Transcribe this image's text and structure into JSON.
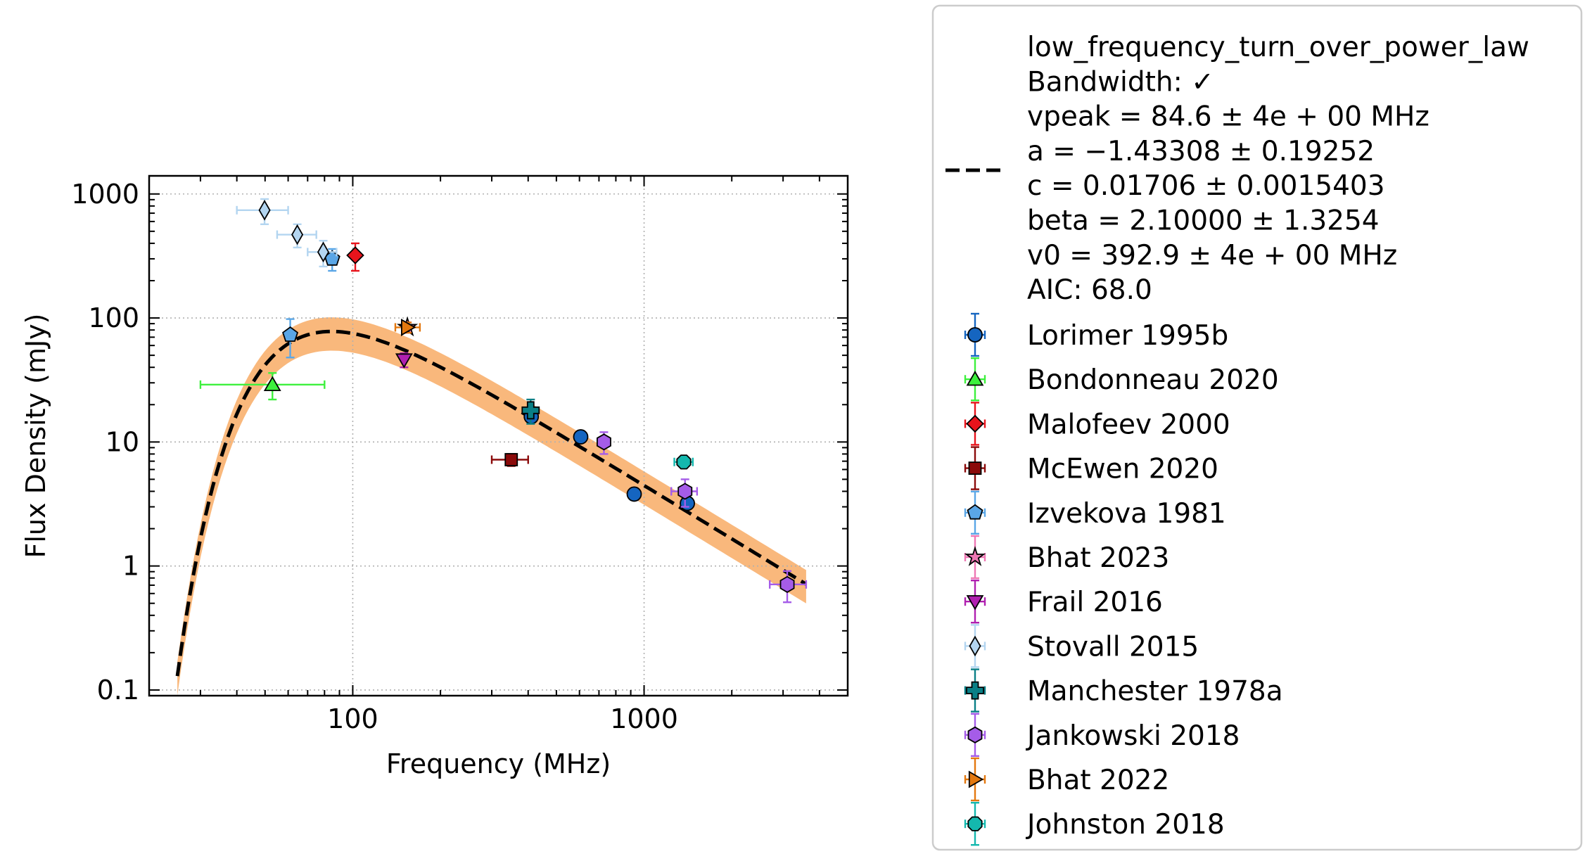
{
  "chart_data": {
    "type": "scatter",
    "xscale": "log",
    "yscale": "log",
    "xlim": [
      20,
      5000
    ],
    "ylim": [
      0.09,
      1400
    ],
    "xlabel": "Frequency (MHz)",
    "ylabel": "Flux Density (mJy)",
    "x_ticks": [
      {
        "value": 100,
        "label": "100"
      },
      {
        "value": 1000,
        "label": "1000"
      }
    ],
    "y_ticks": [
      {
        "value": 0.1,
        "label": "0.1"
      },
      {
        "value": 1,
        "label": "1"
      },
      {
        "value": 10,
        "label": "10"
      },
      {
        "value": 100,
        "label": "100"
      },
      {
        "value": 1000,
        "label": "1000"
      }
    ],
    "grid": true,
    "legend_position": "outside-right",
    "fit": {
      "model": "low_frequency_turn_over_power_law",
      "lines": [
        "low_frequency_turn_over_power_law",
        "Bandwidth: ✓",
        "vpeak = 84.6 ± 4e + 00 MHz",
        "a = −1.43308 ± 0.19252",
        "c = 0.01706 ± 0.0015403",
        "beta = 2.10000 ± 1.3254",
        "v0 = 392.9 ± 4e + 00 MHz",
        "AIC: 68.0"
      ],
      "vpeak": 84.6,
      "a": -1.43308,
      "c": 0.01706,
      "beta": 2.1,
      "v0": 392.9,
      "x_range": [
        25,
        3600
      ],
      "line_color": "#000000",
      "band_color": "#f9b87c",
      "band_fraction": 0.3
    },
    "series": [
      {
        "name": "Lorimer 1995b",
        "marker": "circle",
        "color": "#1565c0",
        "points": [
          {
            "x": 410,
            "y": 16,
            "yerr": [
              1.5,
              1.5
            ]
          },
          {
            "x": 606,
            "y": 11,
            "yerr": [
              0.8,
              0.8
            ]
          },
          {
            "x": 925,
            "y": 3.8,
            "yerr": [
              0.4,
              0.4
            ]
          },
          {
            "x": 1408,
            "y": 3.2,
            "yerr": [
              0.3,
              0.3
            ]
          }
        ]
      },
      {
        "name": "Bondonneau 2020",
        "marker": "triangle-up",
        "color": "#3df03d",
        "points": [
          {
            "x": 53,
            "y": 29,
            "xlo": 30,
            "xhi": 80,
            "yerr": [
              7,
              7
            ]
          }
        ]
      },
      {
        "name": "Malofeev 2000",
        "marker": "diamond",
        "color": "#e8141c",
        "points": [
          {
            "x": 102,
            "y": 320,
            "yerr": [
              80,
              80
            ]
          }
        ]
      },
      {
        "name": "McEwen 2020",
        "marker": "square",
        "color": "#8b0a0a",
        "points": [
          {
            "x": 350,
            "y": 7.2,
            "xlo": 300,
            "xhi": 400,
            "yerr": [
              0.8,
              0.8
            ]
          }
        ]
      },
      {
        "name": "Izvekova 1981",
        "marker": "pentagon",
        "color": "#5aa6e6",
        "points": [
          {
            "x": 61,
            "y": 73,
            "yerr": [
              25,
              25
            ]
          },
          {
            "x": 85,
            "y": 300,
            "yerr": [
              60,
              60
            ]
          }
        ]
      },
      {
        "name": "Bhat 2023",
        "marker": "star",
        "color": "#ee77b4",
        "points": [
          {
            "x": 154,
            "y": 84,
            "yerr": [
              8,
              8
            ]
          }
        ]
      },
      {
        "name": "Frail 2016",
        "marker": "triangle-down",
        "color": "#b020b0",
        "points": [
          {
            "x": 150,
            "y": 46,
            "yerr": [
              6,
              6
            ]
          }
        ]
      },
      {
        "name": "Stovall 2015",
        "marker": "thin-diamond",
        "color": "#b3d5f0",
        "points": [
          {
            "x": 49.8,
            "y": 740,
            "xlo": 40,
            "xhi": 60,
            "yerr": [
              170,
              170
            ]
          },
          {
            "x": 64.5,
            "y": 470,
            "xlo": 55,
            "xhi": 75,
            "yerr": [
              100,
              100
            ]
          },
          {
            "x": 79.2,
            "y": 340,
            "xlo": 70,
            "xhi": 88,
            "yerr": [
              80,
              80
            ]
          }
        ]
      },
      {
        "name": "Manchester 1978a",
        "marker": "plus",
        "color": "#0a7f86",
        "points": [
          {
            "x": 408,
            "y": 18,
            "yerr": [
              4,
              4
            ]
          }
        ]
      },
      {
        "name": "Jankowski 2018",
        "marker": "hexagon",
        "color": "#a55ce8",
        "points": [
          {
            "x": 728,
            "y": 10,
            "yerr": [
              2,
              2
            ]
          },
          {
            "x": 1382,
            "y": 4,
            "xlo": 1240,
            "xhi": 1520,
            "yerr": [
              1,
              1
            ]
          },
          {
            "x": 3100,
            "y": 0.71,
            "xlo": 2700,
            "xhi": 3600,
            "yerr": [
              0.2,
              0.2
            ]
          }
        ]
      },
      {
        "name": "Bhat 2022",
        "marker": "triangle-right",
        "color": "#e3780f",
        "points": [
          {
            "x": 154,
            "y": 84,
            "xlo": 140,
            "xhi": 170,
            "yerr": [
              8,
              8
            ]
          }
        ]
      },
      {
        "name": "Johnston 2018",
        "marker": "octagon",
        "color": "#14b8ae",
        "points": [
          {
            "x": 1369,
            "y": 6.9,
            "xlo": 1270,
            "xhi": 1470,
            "yerr": [
              0.7,
              0.7
            ]
          }
        ]
      }
    ]
  }
}
